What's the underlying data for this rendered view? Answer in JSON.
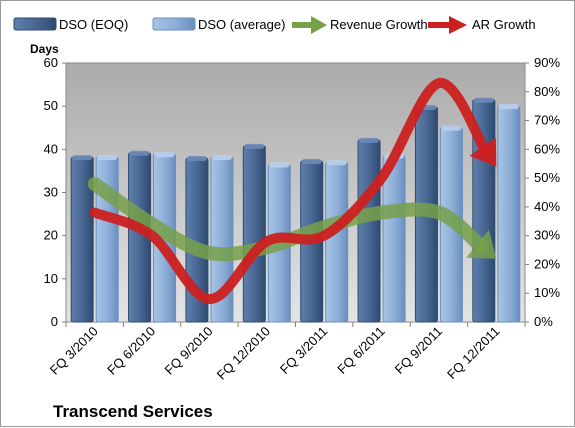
{
  "chart_data": {
    "type": "bar",
    "title": "Transcend Services",
    "ylabel": "Days",
    "ylim": [
      0,
      60
    ],
    "yticks": [
      "0",
      "10",
      "20",
      "30",
      "40",
      "50",
      "60"
    ],
    "y2lim": [
      0,
      90
    ],
    "y2ticks": [
      "0%",
      "10%",
      "20%",
      "30%",
      "40%",
      "50%",
      "60%",
      "70%",
      "80%",
      "90%"
    ],
    "categories": [
      "FQ 3/2010",
      "FQ 6/2010",
      "FQ 9/2010",
      "FQ 12/2010",
      "FQ 3/2011",
      "FQ 6/2011",
      "FQ 9/2011",
      "FQ 12/2011"
    ],
    "series": [
      {
        "name": "DSO (EOQ)",
        "type": "bar",
        "axis": "left",
        "color": "#4a6894",
        "values": [
          38.2,
          39.2,
          38.0,
          40.8,
          37.3,
          42.2,
          49.8,
          51.5
        ]
      },
      {
        "name": "DSO (average)",
        "type": "bar",
        "axis": "left",
        "color": "#8fb0d8",
        "values": [
          38.2,
          38.9,
          38.2,
          36.5,
          37.0,
          38.5,
          45.0,
          50.0
        ]
      },
      {
        "name": "Revenue Growth",
        "type": "line",
        "axis": "right",
        "color": "#77a04a",
        "values": [
          48,
          34,
          24,
          26,
          33,
          38,
          38,
          22
        ]
      },
      {
        "name": "AR Growth",
        "type": "line",
        "axis": "right",
        "color": "#cc2020",
        "values": [
          38,
          30,
          8,
          28,
          30,
          50,
          83,
          54
        ]
      }
    ],
    "grid": false,
    "legend_position": "top"
  }
}
